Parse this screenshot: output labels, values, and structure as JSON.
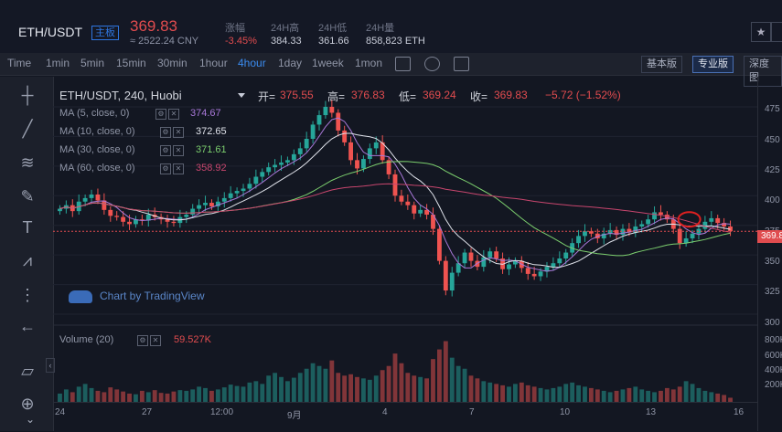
{
  "header": {
    "pair": "ETH/USDT",
    "main_tag": "主板",
    "price": "369.83",
    "cny": "≈ 2522.24 CNY",
    "stats": [
      {
        "label": "涨幅",
        "value": "-3.45%",
        "color": "#e24c4f"
      },
      {
        "label": "24H高",
        "value": "384.33",
        "color": "#c8ccd8"
      },
      {
        "label": "24H低",
        "value": "361.66",
        "color": "#c8ccd8"
      },
      {
        "label": "24H量",
        "value": "858,823 ETH",
        "color": "#c8ccd8"
      }
    ],
    "star_icon": "star-icon"
  },
  "toolbar": {
    "intervals": [
      "Time",
      "1min",
      "5min",
      "15min",
      "30min",
      "1hour",
      "4hour",
      "1day",
      "1week",
      "1mon"
    ],
    "active_interval": "4hour",
    "icons": [
      "indicator-icon",
      "settings-icon",
      "fullscreen-icon"
    ],
    "views": [
      "基本版",
      "专业版",
      "深度图"
    ],
    "active_view": "专业版"
  },
  "chart": {
    "symbol_title": "ETH/USDT, 240, Huobi",
    "ohlc": {
      "open_label": "开=",
      "open": "375.55",
      "high_label": "高=",
      "high": "376.83",
      "low_label": "低=",
      "low": "369.24",
      "close_label": "收=",
      "close": "369.83",
      "change": "−5.72 (−1.52%)"
    },
    "indicators": [
      {
        "name": "MA (5, close, 0)",
        "value": "374.67",
        "color": "#a878d8"
      },
      {
        "name": "MA (10, close, 0)",
        "value": "372.65",
        "color": "#e0e3eb"
      },
      {
        "name": "MA (30, close, 0)",
        "value": "371.61",
        "color": "#7ccf6e"
      },
      {
        "name": "MA (60, close, 0)",
        "value": "358.92",
        "color": "#c8466e"
      }
    ],
    "volume": {
      "name": "Volume (20)",
      "value": "59.527K"
    },
    "watermark": "Chart by TradingView",
    "current_price_label": "369.8",
    "price_axis": [
      "475",
      "450",
      "425",
      "400",
      "375",
      "350",
      "325",
      "300"
    ],
    "volume_axis": [
      "800K",
      "600K",
      "400K",
      "200K"
    ],
    "date_axis": [
      "24",
      "27",
      "12:00",
      "9月",
      "4",
      "7",
      "10",
      "13",
      "16"
    ],
    "colors": {
      "up": "#26a69a",
      "down": "#ef5350",
      "background": "#131722"
    }
  },
  "chart_data": {
    "type": "candlestick",
    "title": "ETH/USDT, 240, Huobi",
    "ylim": [
      300,
      485
    ],
    "closes": [
      389,
      392,
      387,
      395,
      398,
      401,
      396,
      388,
      383,
      382,
      378,
      376,
      380,
      379,
      384,
      382,
      380,
      378,
      377,
      382,
      384,
      389,
      392,
      394,
      391,
      395,
      398,
      402,
      404,
      406,
      410,
      416,
      420,
      424,
      426,
      428,
      430,
      435,
      440,
      448,
      460,
      468,
      475,
      470,
      455,
      445,
      430,
      423,
      431,
      440,
      445,
      430,
      418,
      400,
      395,
      392,
      385,
      388,
      384,
      372,
      345,
      320,
      335,
      343,
      352,
      345,
      340,
      348,
      353,
      347,
      338,
      342,
      345,
      339,
      334,
      332,
      336,
      340,
      343,
      347,
      352,
      360,
      366,
      370,
      368,
      364,
      368,
      371,
      367,
      372,
      369,
      374,
      376,
      380,
      386,
      384,
      380,
      372,
      360,
      364,
      368,
      372,
      378,
      381,
      377,
      374,
      370
    ],
    "volume_k": [
      120,
      180,
      140,
      220,
      260,
      200,
      160,
      140,
      210,
      180,
      150,
      120,
      110,
      160,
      140,
      170,
      130,
      120,
      150,
      170,
      160,
      180,
      220,
      200,
      160,
      180,
      210,
      250,
      230,
      220,
      280,
      300,
      260,
      380,
      420,
      360,
      300,
      350,
      420,
      480,
      560,
      520,
      480,
      600,
      420,
      380,
      400,
      360,
      340,
      320,
      380,
      460,
      520,
      700,
      560,
      420,
      380,
      360,
      340,
      620,
      760,
      880,
      640,
      520,
      480,
      380,
      340,
      300,
      280,
      260,
      240,
      220,
      260,
      280,
      240,
      220,
      200,
      180,
      200,
      220,
      260,
      280,
      240,
      220,
      200,
      180,
      160,
      140,
      160,
      180,
      200,
      220,
      180,
      160,
      140,
      160,
      200,
      180,
      220,
      300,
      260,
      200,
      160,
      140,
      120,
      100,
      60
    ]
  }
}
